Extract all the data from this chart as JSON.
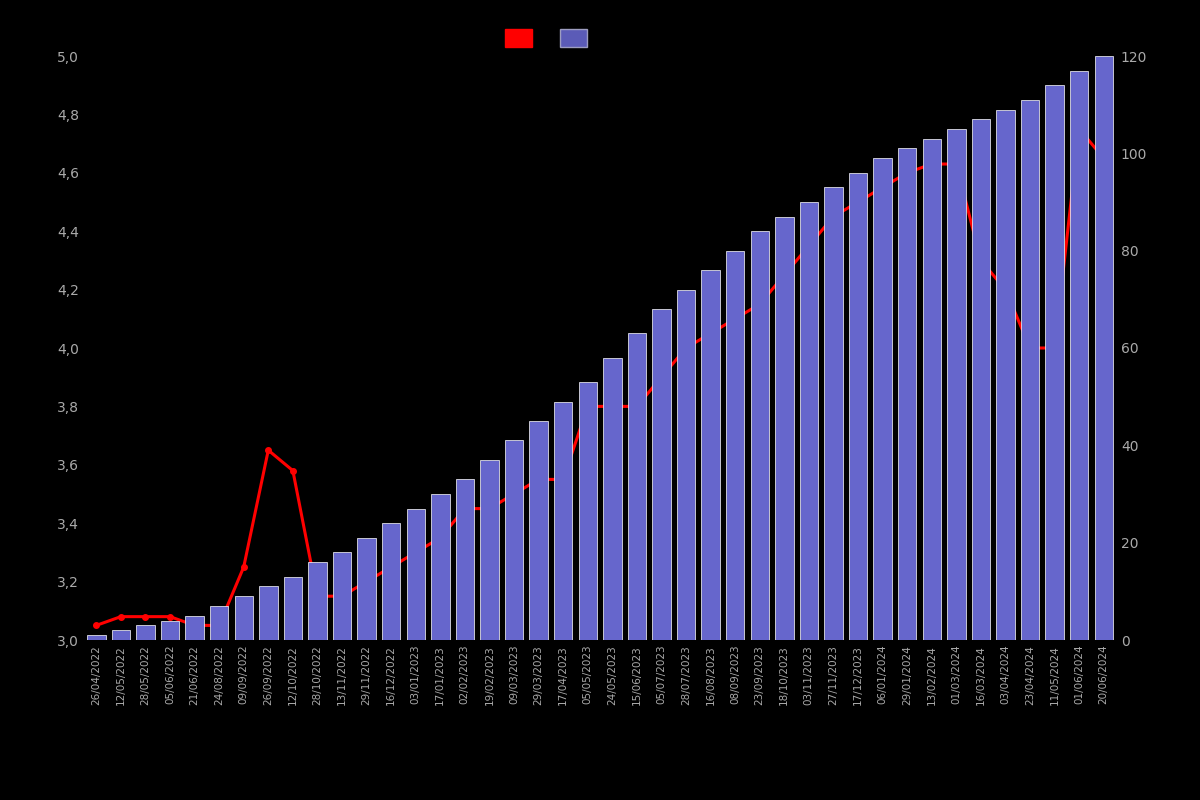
{
  "background_color": "#000000",
  "bar_color": "#6666cc",
  "bar_edge_color": "#ffffff",
  "line_color": "#ff0000",
  "marker_color": "#ff0000",
  "left_ylim": [
    3.0,
    5.0
  ],
  "right_ylim": [
    0,
    120
  ],
  "left_yticks": [
    3.0,
    3.2,
    3.4,
    3.6,
    3.8,
    4.0,
    4.2,
    4.4,
    4.6,
    4.8,
    5.0
  ],
  "right_yticks": [
    0,
    20,
    40,
    60,
    80,
    100,
    120
  ],
  "tick_color": "#aaaaaa",
  "dates": [
    "26/04/2022",
    "12/05/2022",
    "28/05/2022",
    "05/06/2022",
    "21/06/2022",
    "24/08/2022",
    "09/09/2022",
    "26/09/2022",
    "12/10/2022",
    "28/10/2022",
    "13/11/2022",
    "29/11/2022",
    "16/12/2022",
    "03/01/2023",
    "17/01/2023",
    "02/02/2023",
    "19/02/2023",
    "09/03/2023",
    "29/03/2023",
    "17/04/2023",
    "05/05/2023",
    "24/05/2023",
    "15/06/2023",
    "05/07/2023",
    "28/07/2023",
    "16/08/2023",
    "08/09/2023",
    "23/09/2023",
    "18/10/2023",
    "03/11/2023",
    "27/11/2023",
    "17/12/2023",
    "06/01/2024",
    "29/01/2024",
    "13/02/2024",
    "01/03/2024",
    "16/03/2024",
    "03/04/2024",
    "23/04/2024",
    "11/05/2024",
    "01/06/2024",
    "20/06/2024"
  ],
  "bar_values": [
    1,
    2,
    3,
    4,
    5,
    7,
    9,
    11,
    13,
    16,
    18,
    21,
    24,
    27,
    30,
    33,
    37,
    41,
    45,
    49,
    53,
    58,
    63,
    68,
    72,
    76,
    80,
    84,
    87,
    90,
    93,
    96,
    99,
    101,
    103,
    105,
    107,
    109,
    111,
    114,
    117,
    120
  ],
  "line_values": [
    3.05,
    3.08,
    3.08,
    3.08,
    3.05,
    3.05,
    3.25,
    3.65,
    3.58,
    3.15,
    3.15,
    3.2,
    3.25,
    3.3,
    3.35,
    3.45,
    3.45,
    3.5,
    3.55,
    3.55,
    3.8,
    3.8,
    3.8,
    3.9,
    4.0,
    4.05,
    4.1,
    4.15,
    4.25,
    4.35,
    4.45,
    4.5,
    4.55,
    4.6,
    4.63,
    4.63,
    4.3,
    4.2,
    4.0,
    4.0,
    4.75,
    4.65
  ],
  "legend_labels": [
    "",
    ""
  ]
}
